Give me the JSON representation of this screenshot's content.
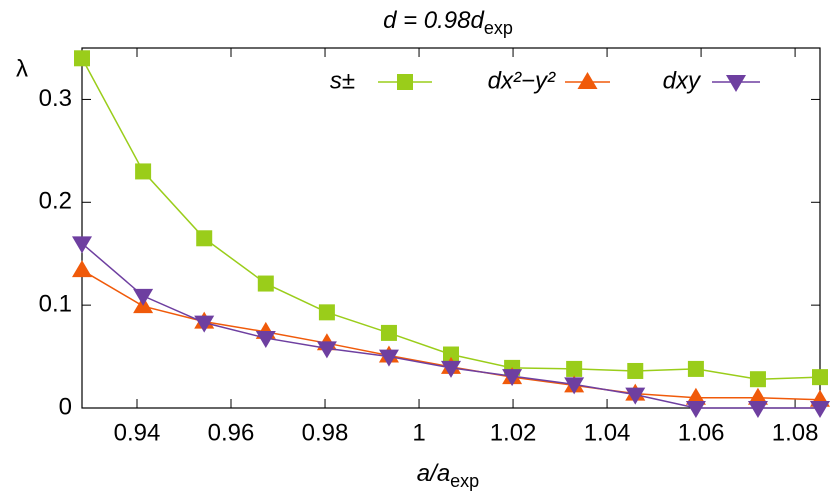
{
  "chart_data": {
    "type": "line",
    "title": {
      "main": "d = 0.98d",
      "sub": "exp"
    },
    "x_label": {
      "main": "a/a",
      "sub": "exp"
    },
    "y_label": "λ",
    "x": [
      0.9283,
      0.9413,
      0.9543,
      0.9674,
      0.9804,
      0.9936,
      1.0068,
      1.0198,
      1.033,
      1.046,
      1.0589,
      1.0721,
      1.0853
    ],
    "series": [
      {
        "name": "s±",
        "color": "#9acd1a",
        "marker": "square",
        "values": [
          0.34,
          0.23,
          0.165,
          0.121,
          0.093,
          0.073,
          0.052,
          0.039,
          0.038,
          0.036,
          0.038,
          0.028,
          0.03
        ]
      },
      {
        "name": "dx²−y²",
        "color": "#f05a0a",
        "marker": "triangle-up",
        "values": [
          0.134,
          0.099,
          0.084,
          0.074,
          0.063,
          0.051,
          0.04,
          0.03,
          0.022,
          0.014,
          0.01,
          0.01,
          0.008
        ]
      },
      {
        "name": "dxy",
        "color": "#6e3fa0",
        "marker": "triangle-down",
        "values": [
          0.16,
          0.109,
          0.083,
          0.068,
          0.058,
          0.05,
          0.039,
          0.031,
          0.023,
          0.013,
          0,
          0,
          0
        ]
      }
    ],
    "xlim": [
      0.9283,
      1.0853
    ],
    "ylim": [
      0,
      0.35
    ],
    "xticks": [
      0.94,
      0.96,
      0.98,
      1,
      1.02,
      1.04,
      1.06,
      1.08
    ],
    "yticks": [
      0,
      0.1,
      0.2,
      0.3
    ],
    "grid": false
  }
}
